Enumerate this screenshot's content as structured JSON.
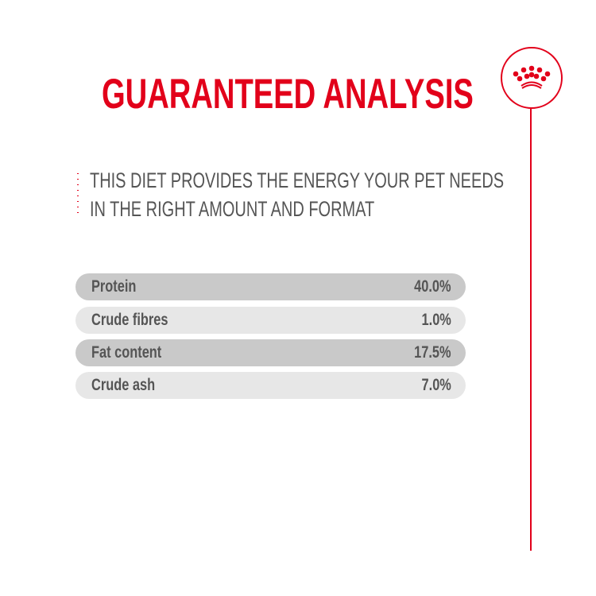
{
  "title": "GUARANTEED ANALYSIS",
  "subtitle": [
    "THIS DIET PROVIDES THE ENERGY YOUR PET NEEDS",
    "IN THE RIGHT AMOUNT AND FORMAT"
  ],
  "brand_color": "#e2001a",
  "logo": "crown-icon",
  "rows": [
    {
      "label": "Protein",
      "value": "40.0%"
    },
    {
      "label": "Crude fibres",
      "value": "1.0%"
    },
    {
      "label": "Fat content",
      "value": "17.5%"
    },
    {
      "label": "Crude ash",
      "value": "7.0%"
    }
  ]
}
